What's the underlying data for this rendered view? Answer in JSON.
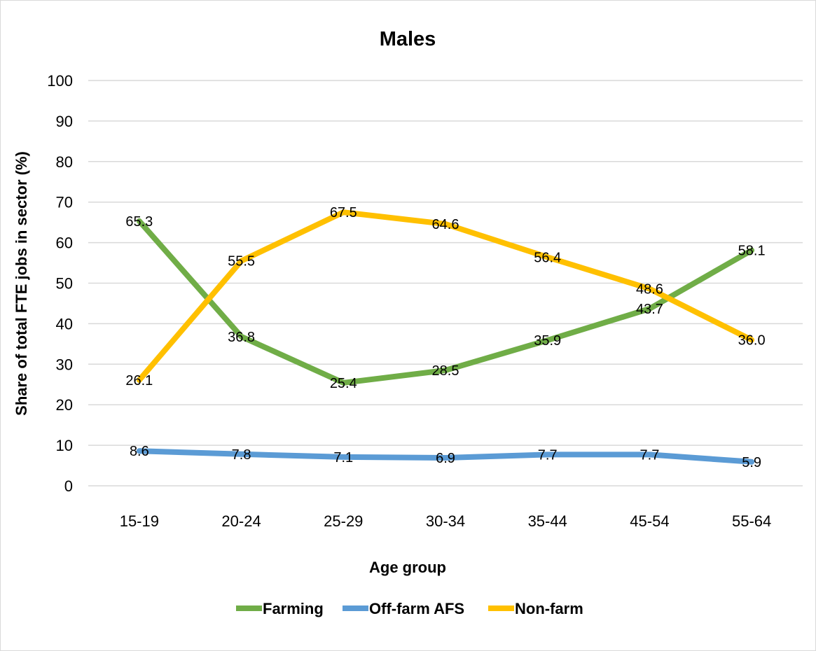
{
  "chart_data": {
    "type": "line",
    "title": "Males",
    "xlabel": "Age group",
    "ylabel": "Share of total FTE jobs in sector (%)",
    "ylim": [
      0,
      100
    ],
    "yticks": [
      0,
      10,
      20,
      30,
      40,
      50,
      60,
      70,
      80,
      90,
      100
    ],
    "grid": true,
    "legend_position": "bottom",
    "categories": [
      "15-19",
      "20-24",
      "25-29",
      "30-34",
      "35-44",
      "45-54",
      "55-64"
    ],
    "series": [
      {
        "name": "Farming",
        "color": "#70ad47",
        "values": [
          65.3,
          36.8,
          25.4,
          28.5,
          35.9,
          43.7,
          58.1
        ],
        "labels": [
          "65.3",
          "36.8",
          "25.4",
          "28.5",
          "35.9",
          "43.7",
          "58.1"
        ]
      },
      {
        "name": "Off-farm AFS",
        "color": "#5b9bd5",
        "values": [
          8.6,
          7.8,
          7.1,
          6.9,
          7.7,
          7.7,
          5.9
        ],
        "labels": [
          "8.6",
          "7.8",
          "7.1",
          "6.9",
          "7.7",
          "7.7",
          "5.9"
        ]
      },
      {
        "name": "Non-farm",
        "color": "#ffc000",
        "values": [
          26.1,
          55.5,
          67.5,
          64.6,
          56.4,
          48.6,
          36.0
        ],
        "labels": [
          "26.1",
          "55.5",
          "67.5",
          "64.6",
          "56.4",
          "48.6",
          "36.0"
        ]
      }
    ]
  }
}
